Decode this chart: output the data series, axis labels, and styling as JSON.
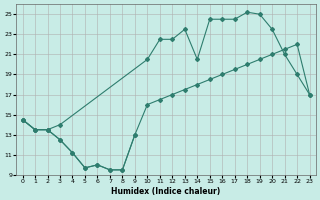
{
  "xlabel": "Humidex (Indice chaleur)",
  "bg_color": "#c8ece6",
  "line_color": "#2e7d6e",
  "grid_color": "#b0b0b0",
  "xlim": [
    -0.5,
    23.5
  ],
  "ylim": [
    9,
    26
  ],
  "xticks": [
    0,
    1,
    2,
    3,
    4,
    5,
    6,
    7,
    8,
    9,
    10,
    11,
    12,
    13,
    14,
    15,
    16,
    17,
    18,
    19,
    20,
    21,
    22,
    23
  ],
  "yticks": [
    9,
    11,
    13,
    15,
    17,
    19,
    21,
    23,
    25
  ],
  "line1_x": [
    0,
    1,
    2,
    3,
    4,
    5,
    6,
    7,
    8,
    9,
    10,
    11,
    12,
    13,
    14,
    15,
    16,
    17,
    18,
    19,
    20,
    21,
    22,
    23
  ],
  "line1_y": [
    14.5,
    13.5,
    13.5,
    12.5,
    11.2,
    9.7,
    10.0,
    9.5,
    9.5,
    13.0,
    16.0,
    16.5,
    17.0,
    17.5,
    18.0,
    18.5,
    19.0,
    19.5,
    20.0,
    20.5,
    21.0,
    21.5,
    22.0,
    17.0
  ],
  "line2_x": [
    0,
    1,
    2,
    3,
    10,
    11,
    12,
    13,
    14,
    15,
    16,
    17,
    18,
    19,
    20,
    21,
    22,
    23
  ],
  "line2_y": [
    14.5,
    13.5,
    13.5,
    14.0,
    20.5,
    22.5,
    22.5,
    23.5,
    20.5,
    24.5,
    24.5,
    24.5,
    25.2,
    25.0,
    23.5,
    21.0,
    19.0,
    17.0
  ],
  "line3_x": [
    0,
    1,
    2,
    3,
    4,
    5,
    6,
    7,
    8,
    9
  ],
  "line3_y": [
    14.5,
    13.5,
    13.5,
    12.5,
    11.2,
    9.7,
    10.0,
    9.5,
    9.5,
    13.0
  ]
}
